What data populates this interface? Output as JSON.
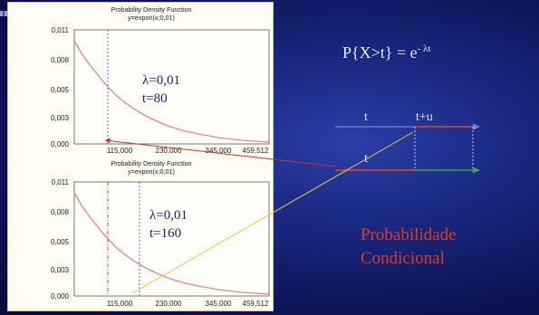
{
  "slide": {
    "formula": {
      "lhs": "P{X>t} = e",
      "exponent": "- λt"
    },
    "timeline": {
      "top_t": "t",
      "top_tu": "t+u",
      "bottom_t": "t"
    },
    "conditional": {
      "line1": "Probabilidade",
      "line2": "Condicional"
    }
  },
  "chart_data": [
    {
      "type": "line",
      "title": "Probability Density Function",
      "subtitle": "y=expon(x;0,01)",
      "x_ticks": [
        "115,000",
        "230,000",
        "345,000",
        "459,512"
      ],
      "y_ticks": [
        "0,011",
        "0,008",
        "0,005",
        "0,003",
        "0,000"
      ],
      "xlim": [
        0,
        459.512
      ],
      "ylim": [
        0,
        0.011
      ],
      "series": [
        {
          "function": "0,01*exp(-0,01*x)"
        }
      ],
      "markers": [
        80
      ],
      "annotation": {
        "lambda": "λ=0,01",
        "t": "t=80"
      },
      "colors": {
        "curve": "#f08080",
        "marker": "#6060d0"
      }
    },
    {
      "type": "line",
      "title": "Probability Density Function",
      "subtitle": "y=expon(x;0,01)",
      "x_ticks": [
        "115,000",
        "230,000",
        "345,000",
        "459,512"
      ],
      "y_ticks": [
        "0,011",
        "0,008",
        "0,005",
        "0,003",
        "0,000"
      ],
      "xlim": [
        0,
        459.512
      ],
      "ylim": [
        0,
        0.011
      ],
      "series": [
        {
          "function": "0,01*exp(-0,01*x)"
        }
      ],
      "markers": [
        80,
        160
      ],
      "annotation": {
        "lambda": "λ=0,01",
        "t": "t=160"
      },
      "colors": {
        "curve": "#f08080",
        "marker": "#d04040"
      }
    }
  ]
}
